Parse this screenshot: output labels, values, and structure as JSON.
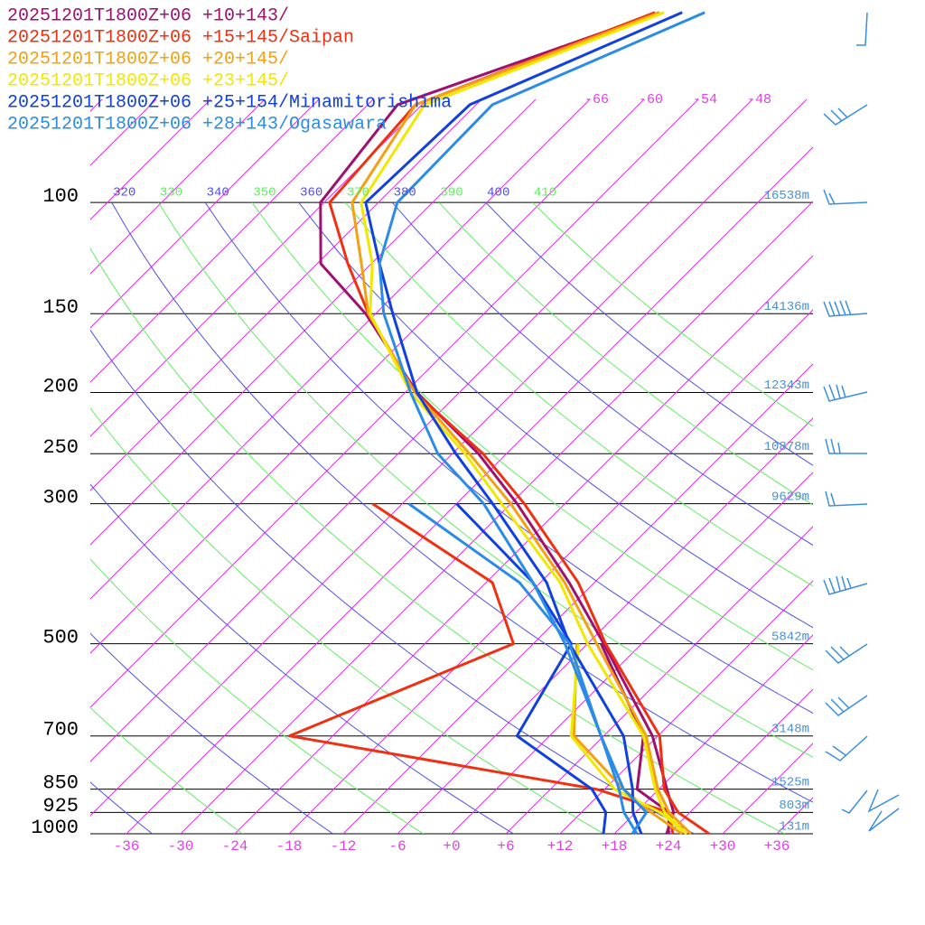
{
  "chart_data": {
    "type": "skewt",
    "pressure": [
      1000,
      925,
      850,
      700,
      500,
      400,
      300,
      250,
      200,
      150,
      125,
      100,
      70,
      50
    ],
    "series": [
      {
        "name": "20251201T1800Z+06 +10+143/",
        "color": "#a0106e",
        "temperature": [
          23.8,
          22.2,
          18.9,
          11.4,
          -4.2,
          -14.8,
          -29.3,
          -39.1,
          -52.7,
          -67.1,
          -77.6,
          -84.4,
          -86.7,
          -67.9
        ],
        "dewpoint": [
          24.0,
          21.7,
          15.6,
          10.4,
          -4.5,
          null,
          null,
          null,
          null,
          null,
          null,
          null,
          null,
          null
        ]
      },
      {
        "name": "20251201T1800Z+06 +15+145/Saipan",
        "color": "#f03010",
        "temperature": [
          28.5,
          22.7,
          18.6,
          12.2,
          -4.0,
          -13.8,
          -28.5,
          -38.6,
          -52.9,
          -66.8,
          -74.6,
          -83.4,
          -84.7,
          -68.4
        ],
        "dewpoint": [
          24.5,
          21.7,
          11.1,
          -28.8,
          -14.2,
          -23.3,
          -45.3,
          null,
          null,
          null,
          null,
          null,
          null,
          null
        ]
      },
      {
        "name": "20251201T1800Z+06 +20+145/",
        "color": "#f5a010",
        "temperature": [
          26.5,
          21.7,
          17.9,
          10.7,
          -5.0,
          -15.3,
          -30.0,
          -40.1,
          -52.9,
          -66.8,
          -73.1,
          -80.9,
          -84.7,
          -67.9
        ],
        "dewpoint": [
          25.5,
          19.7,
          14.1,
          2.7,
          -7.2,
          null,
          null,
          null,
          null,
          null,
          null,
          null,
          null,
          null
        ]
      },
      {
        "name": "20251201T1800Z+06 +23+145/",
        "color": "#f0e800",
        "temperature": [
          26.0,
          21.2,
          17.6,
          10.4,
          -6.0,
          -15.8,
          -31.0,
          -40.6,
          -53.4,
          -66.6,
          -71.9,
          -79.9,
          -83.7,
          -67.4
        ],
        "dewpoint": [
          26.0,
          20.7,
          13.1,
          2.4,
          -7.0,
          null,
          null,
          null,
          null,
          null,
          null,
          null,
          null,
          null
        ]
      },
      {
        "name": "20251201T1800Z+06 +25+154/Minamitorishima",
        "color": "#1040e0",
        "temperature": [
          21.0,
          17.7,
          15.1,
          8.2,
          -8.0,
          -17.3,
          -32.0,
          -41.6,
          -52.7,
          -64.1,
          -71.1,
          -79.4,
          -78.7,
          -65.4
        ],
        "dewpoint": [
          16.8,
          14.7,
          10.6,
          -3.6,
          -7.8,
          -18.8,
          -36.0,
          null,
          null,
          null,
          null,
          null,
          null,
          null
        ]
      },
      {
        "name": "20251201T1800Z+06 +28+143/Ogasawara",
        "color": "#2a8ce8",
        "temperature": [
          20.5,
          16.7,
          13.6,
          5.7,
          -8.5,
          -18.8,
          -33.0,
          -43.6,
          -53.4,
          -65.1,
          -71.1,
          -75.9,
          -76.2,
          -62.9
        ],
        "dewpoint": [
          20.0,
          19.2,
          14.1,
          5.7,
          -8.0,
          -20.3,
          -41.3,
          null,
          null,
          null,
          null,
          null,
          null,
          null
        ]
      }
    ],
    "yticks": [
      100,
      150,
      200,
      250,
      300,
      500,
      700,
      850,
      925,
      1000
    ],
    "height_labels": [
      "16538m",
      "14136m",
      "12343m",
      "10878m",
      "9629m",
      "5842m",
      "3148m",
      "1525m",
      "803m",
      "131m"
    ],
    "xticks": [
      -36,
      -30,
      -24,
      -18,
      -12,
      -6,
      {
        "value": 0,
        "label": "+0"
      },
      {
        "value": 6,
        "label": "+6"
      },
      {
        "value": 12,
        "label": "+12"
      },
      {
        "value": 18,
        "label": "+18"
      },
      {
        "value": 24,
        "label": "+24"
      },
      {
        "value": 30,
        "label": "+30"
      },
      {
        "value": 36,
        "label": "+36"
      }
    ],
    "isotherms": [
      -120,
      -114,
      -108,
      -102,
      -96,
      -90,
      -84,
      -78,
      -72,
      -66,
      -60,
      -54,
      -48,
      -42,
      -36,
      -30,
      -24,
      -18,
      -12,
      -6,
      0,
      6,
      12,
      18,
      24,
      30,
      36
    ],
    "isotherm_top_labels": [
      -66,
      -60,
      -54,
      -48
    ],
    "dry_adiabats": [
      240,
      250,
      260,
      270,
      280,
      290,
      300,
      310,
      320,
      330,
      340,
      350,
      360,
      370,
      380,
      390,
      400,
      410
    ]
  }
}
